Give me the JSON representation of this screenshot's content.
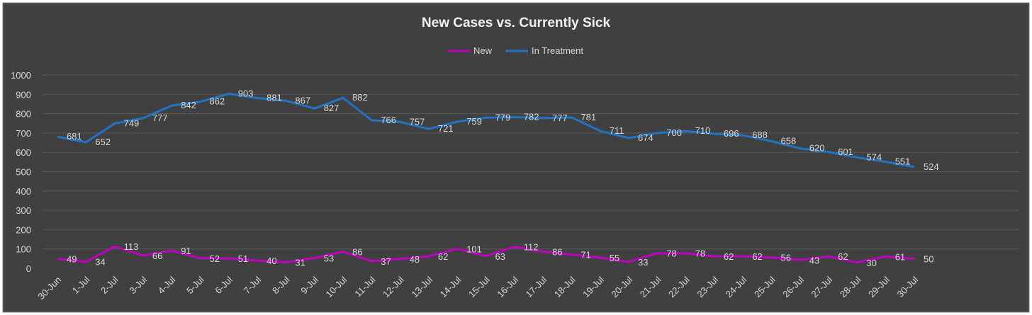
{
  "chart_data": {
    "type": "line",
    "title": "New Cases vs. Currently Sick",
    "xlabel": "",
    "ylabel": "",
    "ylim": [
      0,
      1000
    ],
    "yticks": [
      "0",
      "100",
      "200",
      "300",
      "400",
      "500",
      "600",
      "700",
      "800",
      "900",
      "1000"
    ],
    "grid": true,
    "legend_position": "top",
    "categories": [
      "30-Jun",
      "1-Jul",
      "2-Jul",
      "3-Jul",
      "4-Jul",
      "5-Jul",
      "6-Jul",
      "7-Jul",
      "8-Jul",
      "9-Jul",
      "10-Jul",
      "11-Jul",
      "12-Jul",
      "13-Jul",
      "14-Jul",
      "15-Jul",
      "16-Jul",
      "17-Jul",
      "18-Jul",
      "19-Jul",
      "20-Jul",
      "21-Jul",
      "22-Jul",
      "23-Jul",
      "24-Jul",
      "25-Jul",
      "26-Jul",
      "27-Jul",
      "28-Jul",
      "29-Jul",
      "30-Jul"
    ],
    "series": [
      {
        "name": "New",
        "color": "#c000c0",
        "values": [
          49,
          34,
          113,
          66,
          91,
          52,
          51,
          40,
          31,
          53,
          86,
          37,
          48,
          62,
          101,
          63,
          112,
          86,
          71,
          55,
          33,
          78,
          78,
          62,
          62,
          56,
          43,
          62,
          30,
          61,
          50
        ]
      },
      {
        "name": "In Treatment",
        "color": "#1f74c4",
        "values": [
          681,
          652,
          749,
          777,
          842,
          862,
          903,
          881,
          867,
          827,
          882,
          766,
          757,
          721,
          759,
          779,
          782,
          777,
          781,
          711,
          674,
          700,
          710,
          696,
          688,
          658,
          620,
          601,
          574,
          551,
          524
        ]
      }
    ],
    "colors": {
      "background": "#404040",
      "gridline": "#5a5a5a",
      "text": "#d9d9d9",
      "title": "#f2f2f2"
    }
  }
}
